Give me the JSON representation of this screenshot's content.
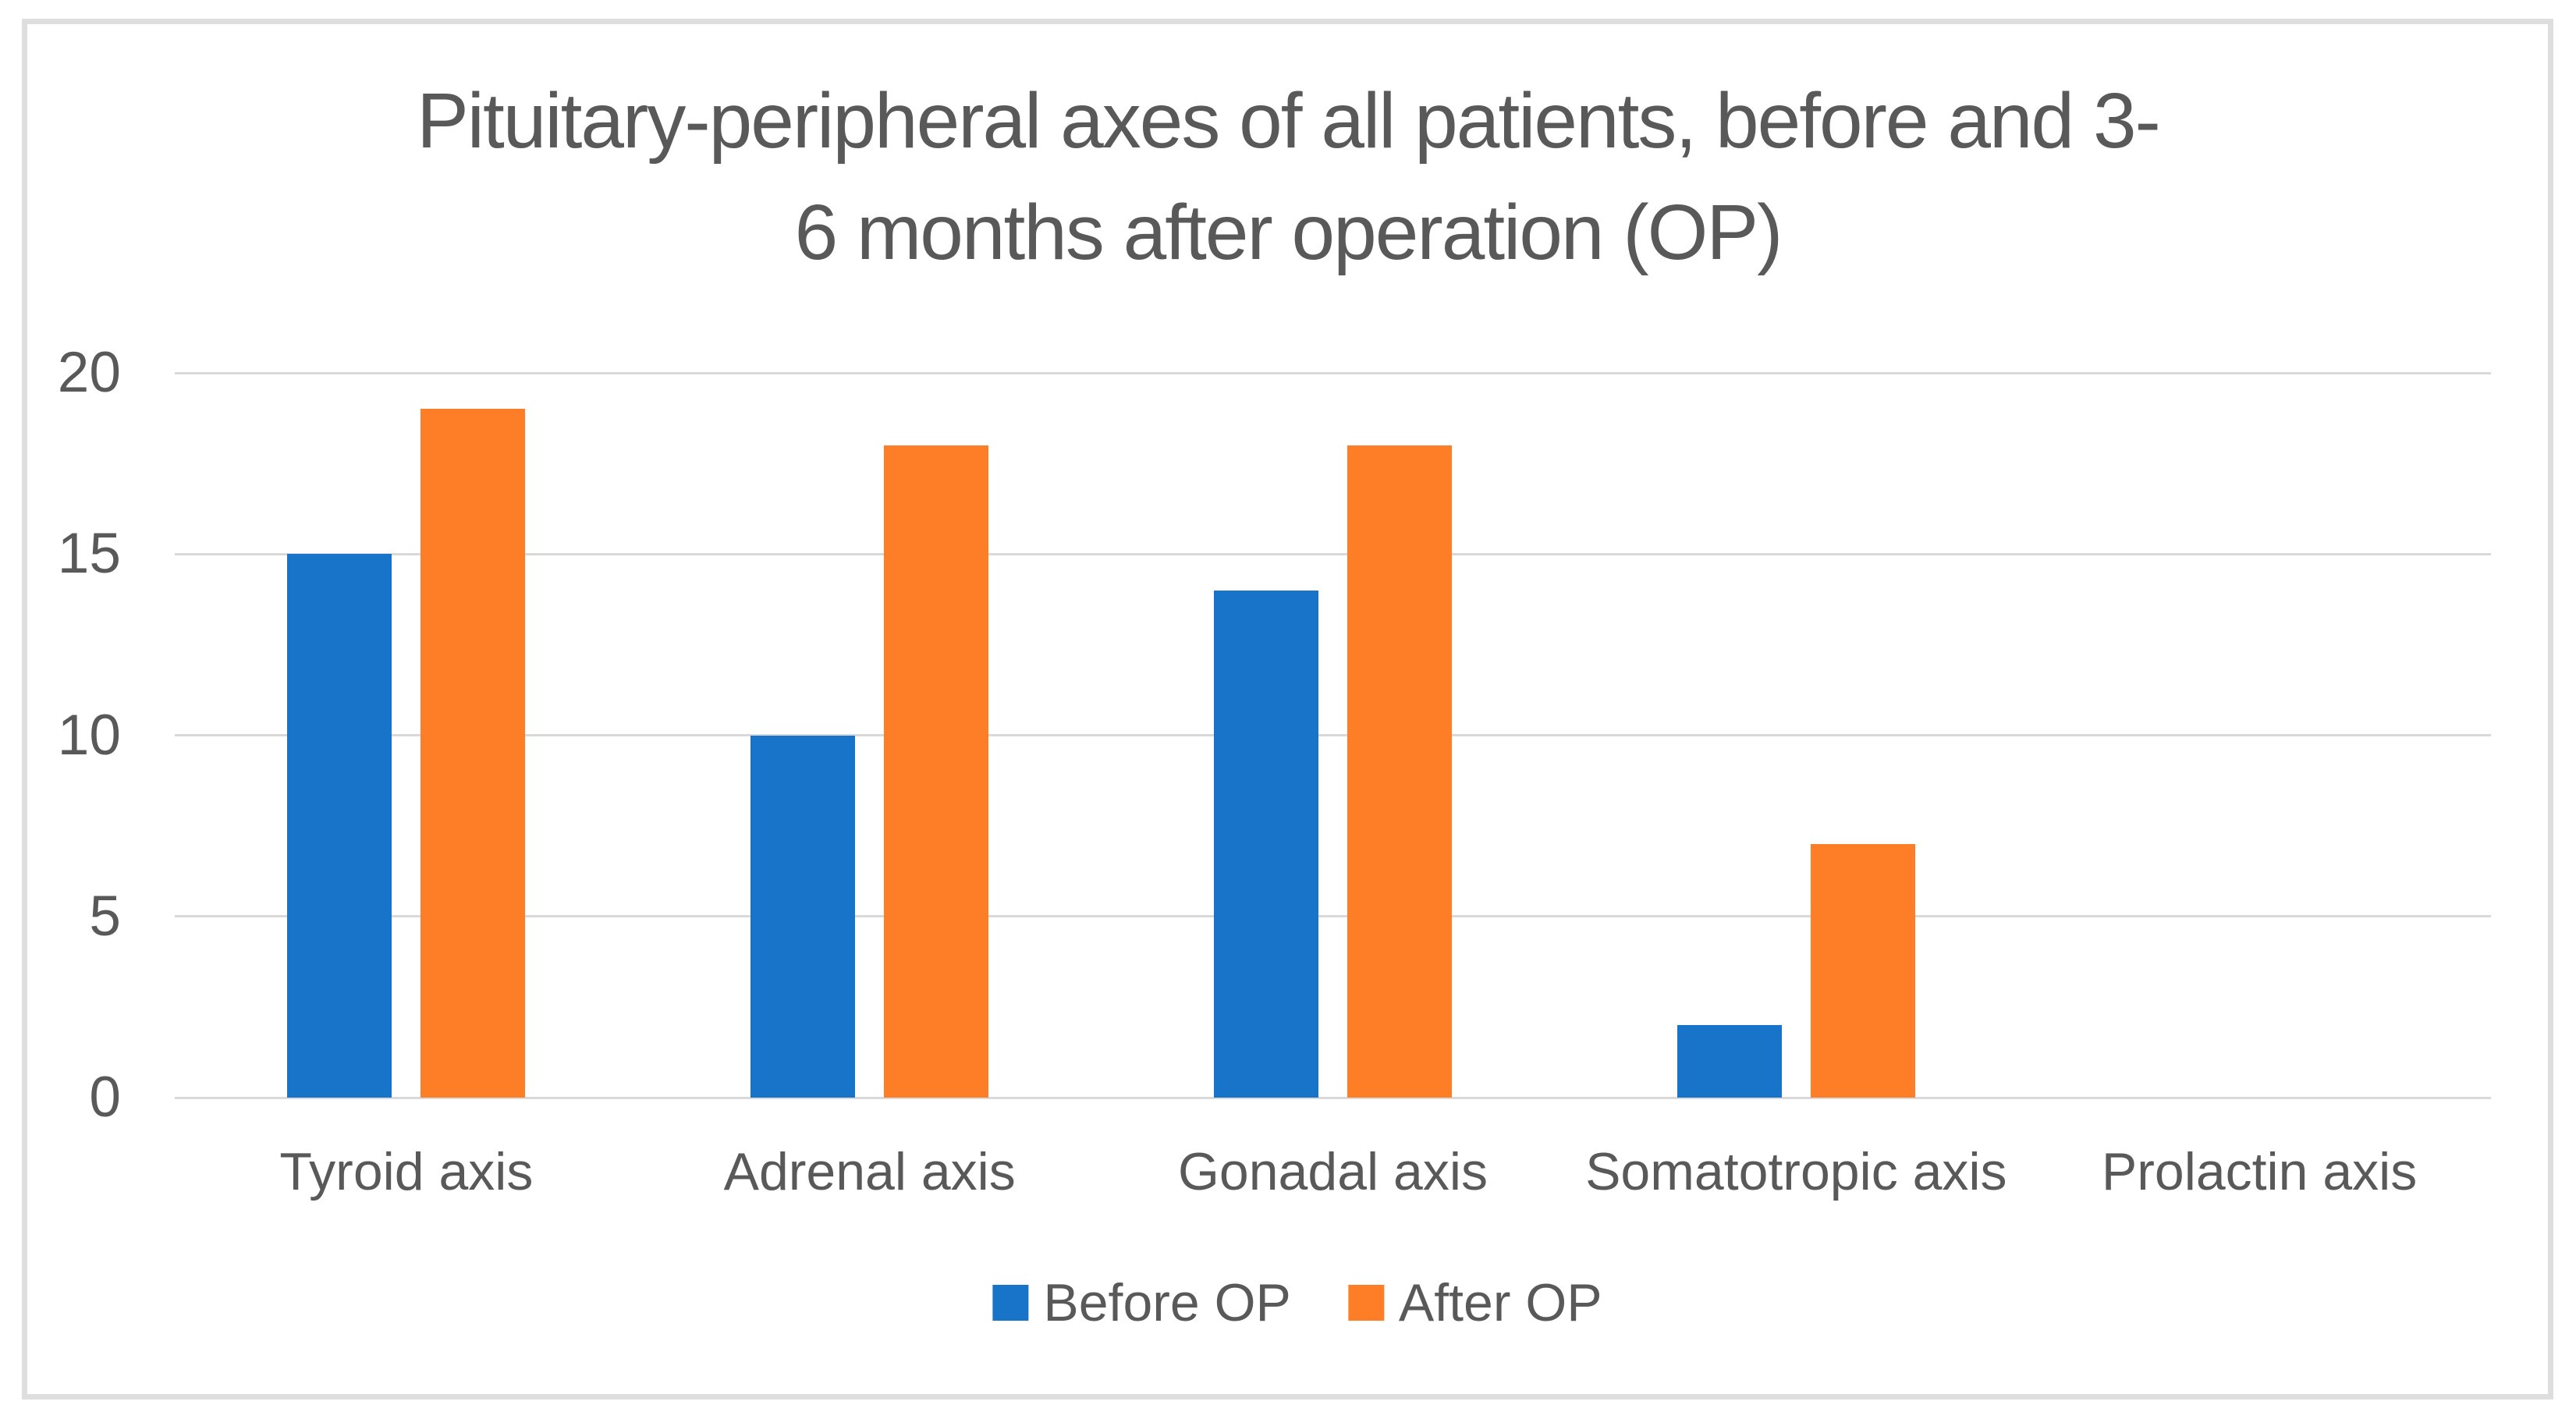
{
  "chart_data": {
    "type": "bar",
    "title": "Pituitary-peripheral axes of all patients, before and 3-6 months after operation (OP)",
    "title_lines": [
      "Pituitary-peripheral axes of all patients, before and 3-",
      "6 months after operation (OP)"
    ],
    "categories": [
      "Tyroid axis",
      "Adrenal axis",
      "Gonadal axis",
      "Somatotropic axis",
      "Prolactin axis"
    ],
    "series": [
      {
        "name": "Before OP",
        "color": "#1774c9",
        "values": [
          15,
          10,
          14,
          2,
          0
        ]
      },
      {
        "name": "After OP",
        "color": "#fd7e26",
        "values": [
          19,
          18,
          18,
          7,
          0
        ]
      }
    ],
    "xlabel": "",
    "ylabel": "",
    "ylim": [
      0,
      20
    ],
    "yticks": [
      0,
      5,
      10,
      15,
      20
    ],
    "grid": "horizontal-only",
    "legend_position": "bottom-center"
  },
  "styles": {
    "text_color": "#595959",
    "gridline_color": "#d9d9d9",
    "border_color": "#dedede",
    "background": "#ffffff"
  }
}
